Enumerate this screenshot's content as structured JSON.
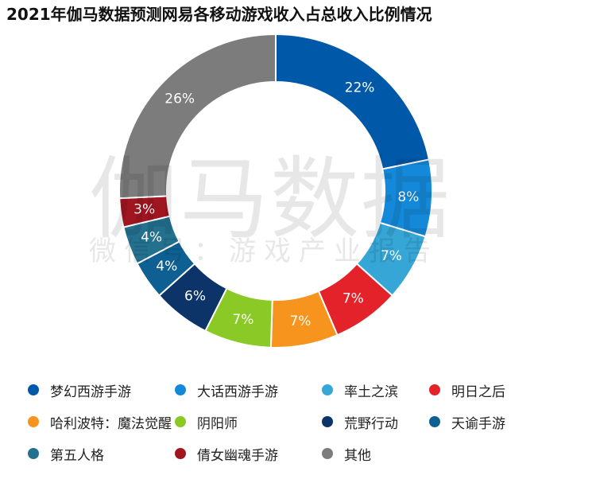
{
  "watermark": {
    "line1": "伽马数据",
    "line2": "微信号：游戏产业报告"
  },
  "chart_data": {
    "type": "pie",
    "variant": "donut",
    "title": "2021年伽马数据预测网易各移动游戏收入占总收入比例情况",
    "unit": "%",
    "legend_position": "bottom",
    "slices": [
      {
        "label": "梦幻西游手游",
        "value": 22,
        "display": "22%",
        "color": "#0058A8"
      },
      {
        "label": "大话西游手游",
        "value": 8,
        "display": "8%",
        "color": "#1489DA"
      },
      {
        "label": "率土之滨",
        "value": 7,
        "display": "7%",
        "color": "#35A6D6"
      },
      {
        "label": "明日之后",
        "value": 7,
        "display": "7%",
        "color": "#E3222A"
      },
      {
        "label": "哈利波特：魔法觉醒",
        "value": 7,
        "display": "7%",
        "color": "#F7941D"
      },
      {
        "label": "阴阳师",
        "value": 7,
        "display": "7%",
        "color": "#8BC926"
      },
      {
        "label": "荒野行动",
        "value": 6,
        "display": "6%",
        "color": "#0C3468"
      },
      {
        "label": "天谕手游",
        "value": 4,
        "display": "4%",
        "color": "#0E5F92"
      },
      {
        "label": "第五人格",
        "value": 4,
        "display": "4%",
        "color": "#24708F"
      },
      {
        "label": "倩女幽魂手游",
        "value": 3,
        "display": "3%",
        "color": "#A01620"
      },
      {
        "label": "其他",
        "value": 26,
        "display": "26%",
        "color": "#7C7C7C"
      }
    ]
  }
}
